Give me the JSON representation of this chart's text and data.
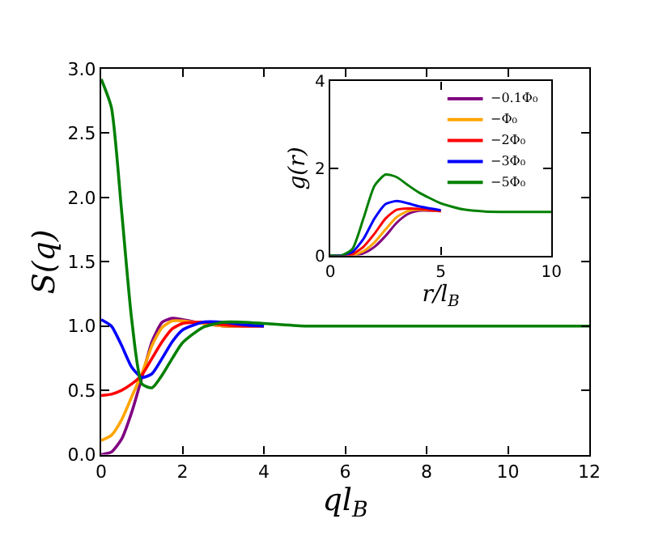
{
  "chart_data": [
    {
      "type": "line",
      "xlabel": "ql$_{B}$",
      "ylabel": "S(q)",
      "x": [
        0,
        0.25,
        0.5,
        0.75,
        1,
        1.25,
        1.5,
        1.75,
        2,
        2.5,
        3,
        3.5,
        4,
        5,
        6,
        12
      ],
      "xlim": [
        0,
        12
      ],
      "xticks": [
        0,
        2,
        4,
        6,
        8,
        10,
        12
      ],
      "ylim": [
        0,
        3
      ],
      "yticks": [
        {
          "value": 0,
          "label": "0.0"
        },
        {
          "value": 0.5,
          "label": "0.5"
        },
        {
          "value": 1,
          "label": "1.0"
        },
        {
          "value": 1.5,
          "label": "1.5"
        },
        {
          "value": 2,
          "label": "2.0"
        },
        {
          "value": 2.5,
          "label": "2.5"
        },
        {
          "value": 3,
          "label": "3.0"
        }
      ],
      "grid": false,
      "legend": false,
      "marker": "none",
      "line_style": "solid",
      "series": [
        {
          "color": "#800080",
          "values": [
            0,
            0.02,
            0.12,
            0.33,
            0.6,
            0.88,
            1.03,
            1.06,
            1.05,
            1.02,
            1.0,
            1.0,
            1.0,
            null,
            null,
            null
          ]
        },
        {
          "color": "#ffa500",
          "values": [
            0.11,
            0.15,
            0.27,
            0.45,
            0.63,
            0.85,
            0.99,
            1.04,
            1.04,
            1.02,
            1.0,
            1,
            1,
            null,
            null,
            null
          ]
        },
        {
          "color": "#ff0000",
          "values": [
            0.46,
            0.47,
            0.5,
            0.55,
            0.62,
            0.75,
            0.88,
            0.98,
            1.02,
            1.03,
            1.01,
            1.0,
            1,
            null,
            null,
            null
          ]
        },
        {
          "color": "#0000ff",
          "values": [
            1.05,
            1.0,
            0.85,
            0.68,
            0.6,
            0.63,
            0.75,
            0.88,
            0.97,
            1.03,
            1.03,
            1.01,
            1.0,
            null,
            null,
            null
          ]
        },
        {
          "color": "#008000",
          "values": [
            2.92,
            2.7,
            1.9,
            1.05,
            0.55,
            0.52,
            0.62,
            0.75,
            0.87,
            0.99,
            1.03,
            1.03,
            1.02,
            1.0,
            1,
            1
          ]
        }
      ]
    },
    {
      "type": "line",
      "xlabel": "r/l$_{B}$",
      "ylabel": "g(r)",
      "x": [
        0,
        0.5,
        1,
        1.5,
        2,
        2.5,
        3,
        3.5,
        4,
        5,
        6,
        7,
        8,
        10
      ],
      "xlim": [
        0,
        10
      ],
      "xticks": [
        0,
        5,
        10
      ],
      "ylim": [
        0,
        4
      ],
      "yticks": [
        0,
        2,
        4
      ],
      "grid": false,
      "legend": "top right",
      "marker": "none",
      "line_style": "solid",
      "series": [
        {
          "name": "−0.1Φ₀",
          "color": "#800080",
          "values": [
            0,
            0,
            0,
            0.05,
            0.2,
            0.45,
            0.75,
            0.95,
            1.03,
            1.02,
            null,
            null,
            null,
            null
          ]
        },
        {
          "name": "−Φ₀",
          "color": "#ffa500",
          "values": [
            0,
            0,
            0.01,
            0.1,
            0.3,
            0.6,
            0.88,
            1.02,
            1.05,
            1.02,
            null,
            null,
            null,
            null
          ]
        },
        {
          "name": "−2Φ₀",
          "color": "#ff0000",
          "values": [
            0,
            0,
            0.03,
            0.2,
            0.5,
            0.85,
            1.05,
            1.08,
            1.07,
            1.02,
            null,
            null,
            null,
            null
          ]
        },
        {
          "name": "−3Φ₀",
          "color": "#0000ff",
          "values": [
            0,
            0,
            0.08,
            0.38,
            0.85,
            1.18,
            1.25,
            1.2,
            1.13,
            1.04,
            null,
            null,
            null,
            null
          ]
        },
        {
          "name": "−5Φ₀",
          "color": "#008000",
          "values": [
            0,
            0,
            0.15,
            0.85,
            1.6,
            1.86,
            1.8,
            1.62,
            1.45,
            1.2,
            1.06,
            1.01,
            1,
            1
          ]
        }
      ]
    }
  ]
}
